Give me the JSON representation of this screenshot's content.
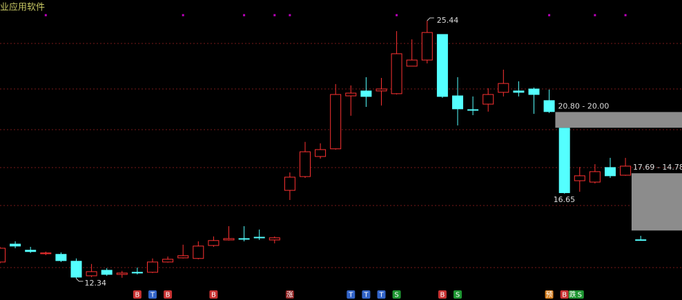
{
  "chart_data": {
    "type": "candlestick",
    "title": "业应用软件",
    "ylim": [
      11.25,
      26.49
    ],
    "up_color": "#ff3232",
    "down_color": "#54ffff",
    "open": [
      13.18,
      14.09,
      13.78,
      13.6,
      13.57,
      13.22,
      12.48,
      12.76,
      12.55,
      12.66,
      12.66,
      13.18,
      13.39,
      13.36,
      14.02,
      14.3,
      14.37,
      14.44,
      14.3,
      16.82,
      17.52,
      18.54,
      18.93,
      21.62,
      21.87,
      21.87,
      21.73,
      23.13,
      23.44,
      24.74,
      21.62,
      20.92,
      21.2,
      21.8,
      21.87,
      21.97,
      21.38,
      19.98,
      17.31,
      17.24,
      17.98,
      17.59,
      14.31
    ],
    "high": [
      13.95,
      14.23,
      13.95,
      13.71,
      13.67,
      13.36,
      13.08,
      12.87,
      12.73,
      12.9,
      13.36,
      13.46,
      14.06,
      14.23,
      14.48,
      15.0,
      15.0,
      14.83,
      14.48,
      17.73,
      19.28,
      19.21,
      22.22,
      22.15,
      22.57,
      22.53,
      24.91,
      24.49,
      25.44,
      24.74,
      22.57,
      21.59,
      22.01,
      22.95,
      22.36,
      22.04,
      21.94,
      19.98,
      18.01,
      18.15,
      18.47,
      18.47,
      14.51
    ],
    "low": [
      13.11,
      13.88,
      13.64,
      13.53,
      13.18,
      12.34,
      12.41,
      12.48,
      12.38,
      12.55,
      12.62,
      13.15,
      13.36,
      13.32,
      13.95,
      14.27,
      14.23,
      14.3,
      14.13,
      16.33,
      17.45,
      18.43,
      18.89,
      20.61,
      21.06,
      21.13,
      21.69,
      23.13,
      23.27,
      21.52,
      20.12,
      20.64,
      20.82,
      21.59,
      21.59,
      20.71,
      20.75,
      16.65,
      16.75,
      17.17,
      17.45,
      17.56,
      14.27
    ],
    "close": [
      13.88,
      13.99,
      13.71,
      13.64,
      13.25,
      12.41,
      12.69,
      12.55,
      12.62,
      12.62,
      13.18,
      13.32,
      13.5,
      13.99,
      14.27,
      14.37,
      14.34,
      14.41,
      14.41,
      17.49,
      18.78,
      18.89,
      21.69,
      21.76,
      21.59,
      21.97,
      23.76,
      23.44,
      24.84,
      21.59,
      20.96,
      20.89,
      21.69,
      22.25,
      21.8,
      21.69,
      20.82,
      16.7,
      17.56,
      17.77,
      17.56,
      18.05,
      14.3
    ],
    "zones": [
      {
        "high": 20.8,
        "low": 20.0,
        "label": "20.80 - 20.00",
        "color": "#8c8c8c"
      },
      {
        "high": 17.69,
        "low": 14.78,
        "label": "17.69 - 14.78",
        "color": "#8c8c8c"
      }
    ],
    "top_marker": [
      false,
      false,
      false,
      true,
      false,
      false,
      false,
      false,
      false,
      false,
      false,
      false,
      true,
      false,
      false,
      false,
      true,
      false,
      true,
      true,
      false,
      false,
      false,
      false,
      false,
      false,
      true,
      false,
      false,
      false,
      false,
      false,
      false,
      false,
      false,
      false,
      true,
      false,
      false,
      true,
      false,
      true,
      false
    ],
    "top_marker_color": "#c000c0",
    "signals": [
      [],
      [],
      [],
      [],
      [],
      [],
      [],
      [],
      [],
      [
        {
          "label": "B",
          "color": "#c83232"
        }
      ],
      [
        {
          "label": "T",
          "color": "#3264c8"
        }
      ],
      [
        {
          "label": "B",
          "color": "#c83232"
        }
      ],
      [],
      [],
      [
        {
          "label": "B",
          "color": "#c83232"
        }
      ],
      [],
      [],
      [],
      [],
      [
        {
          "label": "涨",
          "color": "#8c1e1e"
        }
      ],
      [],
      [],
      [],
      [
        {
          "label": "T",
          "color": "#3264c8"
        }
      ],
      [
        {
          "label": "T",
          "color": "#3264c8"
        }
      ],
      [
        {
          "label": "T",
          "color": "#3264c8"
        }
      ],
      [
        {
          "label": "S",
          "color": "#1e9632"
        }
      ],
      [],
      [],
      [
        {
          "label": "B",
          "color": "#c83232"
        }
      ],
      [
        {
          "label": "S",
          "color": "#1e9632"
        }
      ],
      [],
      [],
      [],
      [],
      [],
      [
        {
          "label": "预",
          "color": "#d27814"
        }
      ],
      [
        {
          "label": "B",
          "color": "#c83232"
        },
        {
          "label": "跌",
          "color": "#1e9632"
        }
      ],
      [
        {
          "label": "S",
          "color": "#1e9632"
        }
      ],
      [],
      [],
      [],
      []
    ]
  }
}
